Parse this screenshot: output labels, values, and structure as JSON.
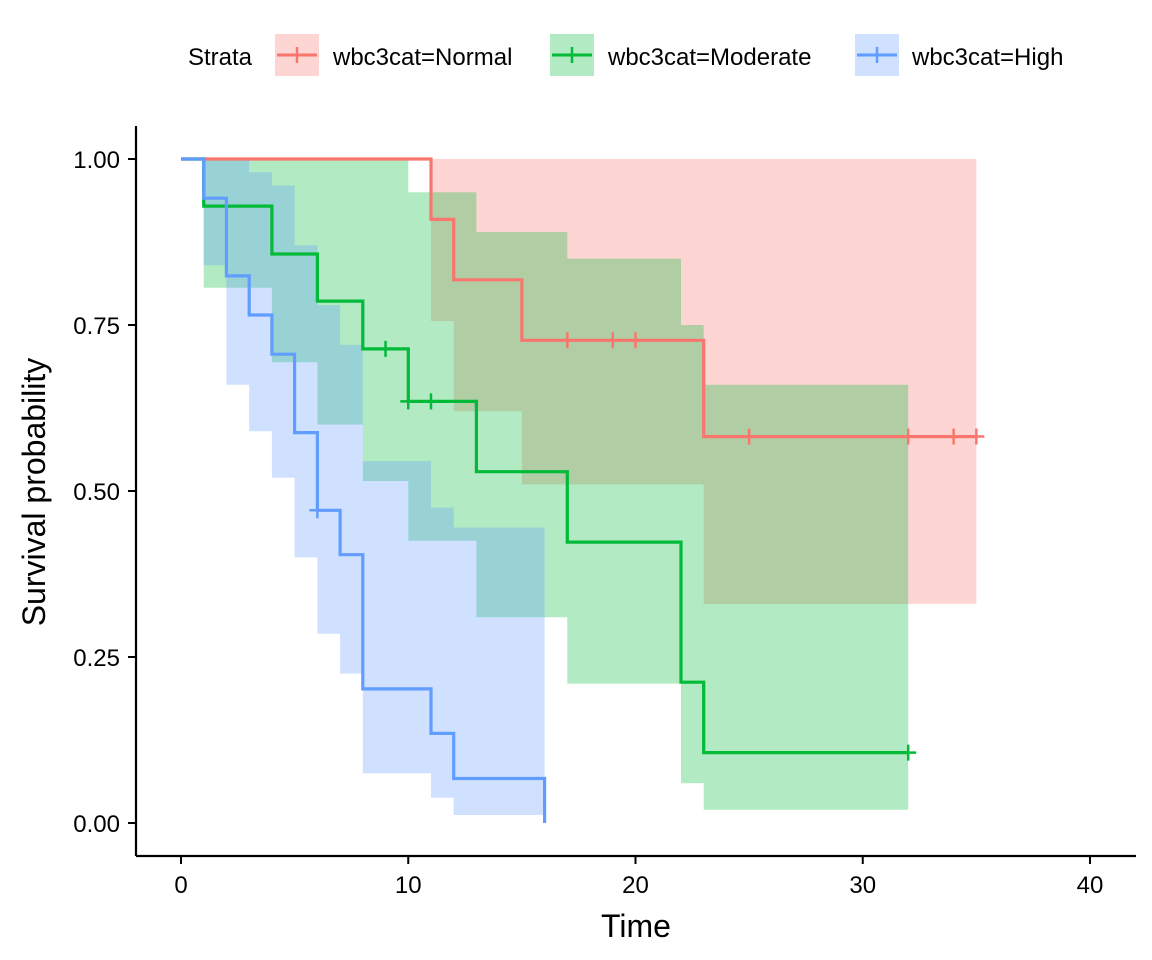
{
  "chart_data": {
    "type": "line",
    "subtype": "kaplan-meier",
    "title": "",
    "xlabel": "Time",
    "ylabel": "Survival probability",
    "xlim": [
      0,
      40
    ],
    "ylim": [
      0,
      1
    ],
    "x_ticks": [
      0,
      10,
      20,
      30,
      40
    ],
    "y_ticks": [
      0,
      0.25,
      0.5,
      0.75,
      1.0
    ],
    "x_tick_labels": [
      "0",
      "10",
      "20",
      "30",
      "40"
    ],
    "y_tick_labels": [
      "0.00",
      "0.25",
      "0.50",
      "0.75",
      "1.00"
    ],
    "grid": false,
    "legend": {
      "position": "top",
      "title": "Strata",
      "entries": [
        "wbc3cat=Normal",
        "wbc3cat=Moderate",
        "wbc3cat=High"
      ]
    },
    "series": [
      {
        "name": "wbc3cat=Normal",
        "color": "#F8766D",
        "fill": "#F8766D",
        "steps": [
          [
            0,
            1.0
          ],
          [
            11,
            0.909
          ],
          [
            12,
            0.818
          ],
          [
            15,
            0.727
          ],
          [
            23,
            0.582
          ]
        ],
        "end": 35,
        "censors": [
          [
            17,
            0.727
          ],
          [
            19,
            0.727
          ],
          [
            20,
            0.727
          ],
          [
            25,
            0.582
          ],
          [
            32,
            0.582
          ],
          [
            34,
            0.582
          ],
          [
            35,
            0.582
          ]
        ],
        "band": [
          [
            0,
            1.0,
            1.0
          ],
          [
            11,
            0.756,
            1.0
          ],
          [
            12,
            0.62,
            1.0
          ],
          [
            15,
            0.51,
            1.0
          ],
          [
            23,
            0.33,
            1.0
          ],
          [
            35,
            0.33,
            1.0
          ]
        ]
      },
      {
        "name": "wbc3cat=Moderate",
        "color": "#00BA38",
        "fill": "#00BA38",
        "steps": [
          [
            0,
            1.0
          ],
          [
            1,
            0.929
          ],
          [
            4,
            0.857
          ],
          [
            6,
            0.786
          ],
          [
            8,
            0.714
          ],
          [
            10,
            0.635
          ],
          [
            13,
            0.529
          ],
          [
            17,
            0.423
          ],
          [
            22,
            0.212
          ],
          [
            23,
            0.106
          ]
        ],
        "end": 32,
        "censors": [
          [
            9,
            0.714
          ],
          [
            10,
            0.635
          ],
          [
            11,
            0.635
          ],
          [
            32,
            0.106
          ]
        ],
        "band": [
          [
            0,
            1.0,
            1.0
          ],
          [
            1,
            0.806,
            1.0
          ],
          [
            4,
            0.694,
            1.0
          ],
          [
            6,
            0.6,
            1.0
          ],
          [
            8,
            0.515,
            1.0
          ],
          [
            10,
            0.425,
            0.95
          ],
          [
            13,
            0.31,
            0.89
          ],
          [
            17,
            0.21,
            0.85
          ],
          [
            22,
            0.06,
            0.75
          ],
          [
            23,
            0.02,
            0.66
          ],
          [
            32,
            0.02,
            0.66
          ]
        ]
      },
      {
        "name": "wbc3cat=High",
        "color": "#619CFF",
        "fill": "#619CFF",
        "steps": [
          [
            0,
            1.0
          ],
          [
            1,
            0.941
          ],
          [
            2,
            0.824
          ],
          [
            3,
            0.765
          ],
          [
            4,
            0.706
          ],
          [
            5,
            0.588
          ],
          [
            6,
            0.471
          ],
          [
            7,
            0.404
          ],
          [
            8,
            0.202
          ],
          [
            11,
            0.135
          ],
          [
            12,
            0.067
          ],
          [
            16,
            0.0
          ]
        ],
        "end": 16,
        "censors": [
          [
            6,
            0.471
          ]
        ],
        "band": [
          [
            0,
            1.0,
            1.0
          ],
          [
            1,
            0.84,
            1.0
          ],
          [
            2,
            0.66,
            1.0
          ],
          [
            3,
            0.59,
            0.98
          ],
          [
            4,
            0.52,
            0.96
          ],
          [
            5,
            0.4,
            0.87
          ],
          [
            6,
            0.285,
            0.78
          ],
          [
            7,
            0.225,
            0.72
          ],
          [
            8,
            0.075,
            0.545
          ],
          [
            11,
            0.038,
            0.475
          ],
          [
            12,
            0.012,
            0.445
          ],
          [
            16,
            0.0,
            0.445
          ]
        ]
      }
    ]
  }
}
